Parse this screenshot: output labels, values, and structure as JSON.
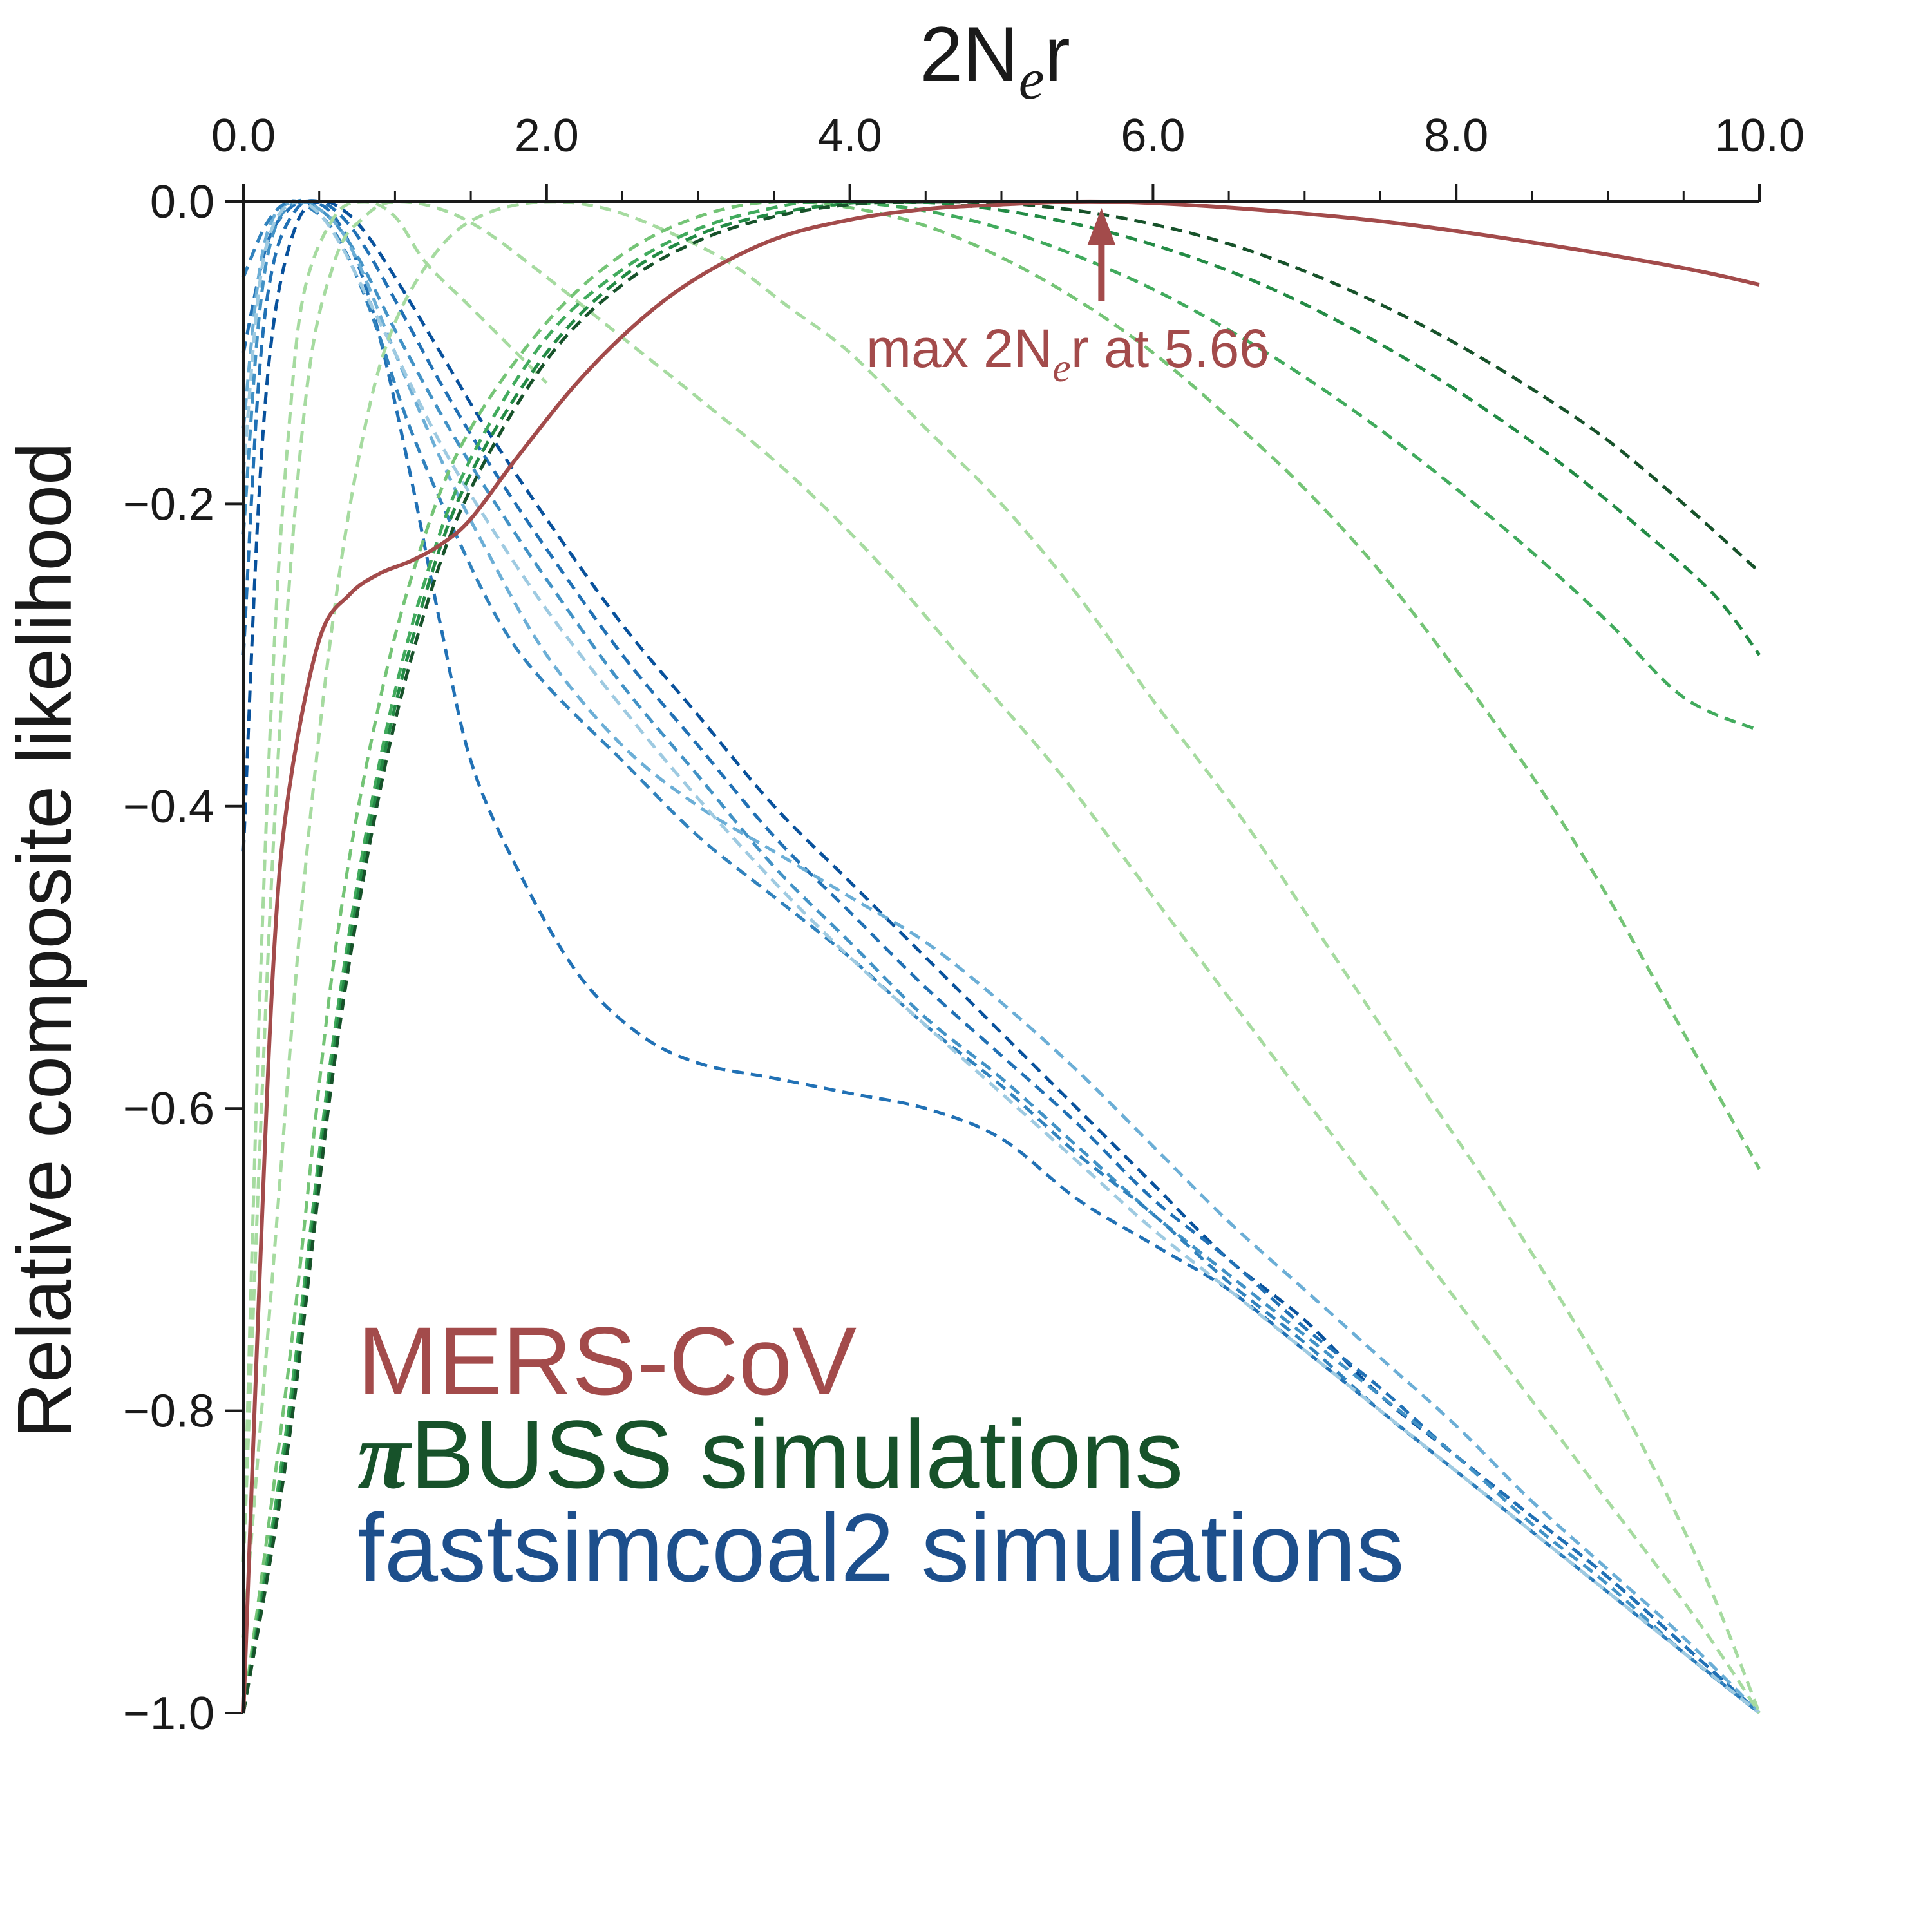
{
  "chart_data": {
    "type": "line",
    "xlabel_main": "2N",
    "xlabel_sub": "e",
    "xlabel_tail": "r",
    "ylabel": "Relative composite likelihood",
    "xlim": [
      0,
      10
    ],
    "ylim": [
      -1.0,
      0.0
    ],
    "x_ticks": [
      0.0,
      2.0,
      4.0,
      6.0,
      8.0,
      10.0
    ],
    "x_tick_labels": [
      "0.0",
      "2.0",
      "4.0",
      "6.0",
      "8.0",
      "10.0"
    ],
    "y_ticks": [
      0.0,
      -0.2,
      -0.4,
      -0.6,
      -0.8,
      -1.0
    ],
    "y_tick_labels": [
      "0.0",
      "−0.2",
      "−0.4",
      "−0.6",
      "−0.8",
      "−1.0"
    ],
    "grid": false,
    "legend_position": "lower-left",
    "legend": [
      {
        "text": "MERS-CoV",
        "color": "#a34b4b"
      },
      {
        "pi": "π",
        "text": "BUSS simulations",
        "color": "#17522a"
      },
      {
        "text": "fastsimcoal2 simulations",
        "color": "#1d4f8c"
      }
    ],
    "annotation": {
      "text_main": "max 2N",
      "text_sub": "e",
      "text_tail": "r at 5.66",
      "x": 5.66,
      "y": 0.0,
      "color": "#a34b4b"
    },
    "mers": {
      "name": "MERS-CoV",
      "color": "#a34b4b",
      "x": [
        0.0,
        0.1,
        0.2,
        0.3,
        0.5,
        0.7,
        0.9,
        1.1,
        1.3,
        1.5,
        1.8,
        2.2,
        2.6,
        3.0,
        3.5,
        4.0,
        4.5,
        5.0,
        5.66,
        6.5,
        7.5,
        8.5,
        9.5,
        10.0
      ],
      "y": [
        -1.0,
        -0.73,
        -0.5,
        -0.39,
        -0.29,
        -0.26,
        -0.246,
        -0.238,
        -0.227,
        -0.21,
        -0.17,
        -0.12,
        -0.08,
        -0.05,
        -0.025,
        -0.012,
        -0.005,
        -0.002,
        0.0,
        -0.004,
        -0.013,
        -0.027,
        -0.044,
        -0.055
      ]
    },
    "green_series": [
      {
        "color": "#a6dba0",
        "x": [
          0.0,
          0.1,
          0.2,
          0.3,
          0.4,
          0.6,
          0.8,
          1.0,
          1.2,
          1.5,
          2.0
        ],
        "y": [
          -0.9,
          -0.55,
          -0.3,
          -0.15,
          -0.06,
          -0.01,
          0.0,
          -0.01,
          -0.04,
          -0.07,
          -0.12
        ]
      },
      {
        "color": "#a6dba0",
        "x": [
          0.0,
          0.2,
          0.4,
          0.6,
          0.8,
          1.0,
          1.3,
          1.6,
          2.0,
          2.5,
          3.0,
          3.6,
          4.2,
          4.8,
          5.4,
          6.0,
          6.6,
          7.2,
          7.8,
          8.4,
          9.0,
          9.6,
          10.0
        ],
        "y": [
          -0.9,
          -0.42,
          -0.14,
          -0.04,
          -0.01,
          0.0,
          -0.005,
          -0.02,
          -0.05,
          -0.09,
          -0.13,
          -0.18,
          -0.24,
          -0.31,
          -0.38,
          -0.46,
          -0.54,
          -0.62,
          -0.7,
          -0.78,
          -0.86,
          -0.94,
          -1.0
        ]
      },
      {
        "color": "#a6dba0",
        "x": [
          0.0,
          0.2,
          0.4,
          0.6,
          0.8,
          1.0,
          1.3,
          1.6,
          2.0,
          2.4,
          2.8,
          3.2,
          3.6,
          4.0,
          4.5,
          5.0,
          5.5,
          6.0,
          6.6,
          7.2,
          7.8,
          8.4,
          9.0,
          9.6,
          10.0
        ],
        "y": [
          -0.95,
          -0.7,
          -0.45,
          -0.27,
          -0.15,
          -0.08,
          -0.03,
          -0.008,
          0.0,
          -0.005,
          -0.02,
          -0.04,
          -0.07,
          -0.1,
          -0.15,
          -0.2,
          -0.26,
          -0.33,
          -0.41,
          -0.5,
          -0.59,
          -0.68,
          -0.78,
          -0.9,
          -1.0
        ]
      },
      {
        "color": "#74c476",
        "x": [
          0.0,
          0.3,
          0.6,
          0.9,
          1.2,
          1.5,
          2.0,
          2.5,
          3.0,
          3.5,
          4.0,
          4.5,
          5.0,
          5.5,
          6.0,
          6.5,
          7.0,
          7.5,
          8.0,
          8.5,
          9.0,
          9.5,
          10.0
        ],
        "y": [
          -1.0,
          -0.77,
          -0.5,
          -0.33,
          -0.22,
          -0.15,
          -0.08,
          -0.035,
          -0.01,
          0.0,
          -0.004,
          -0.016,
          -0.037,
          -0.065,
          -0.1,
          -0.143,
          -0.19,
          -0.245,
          -0.31,
          -0.38,
          -0.46,
          -0.55,
          -0.64
        ]
      },
      {
        "color": "#41ab5d",
        "x": [
          0.0,
          0.3,
          0.6,
          0.9,
          1.2,
          1.5,
          2.0,
          2.5,
          3.0,
          3.5,
          3.8,
          4.2,
          4.6,
          5.0,
          5.5,
          6.0,
          6.5,
          7.0,
          7.5,
          8.0,
          8.5,
          9.0,
          9.5,
          10.0
        ],
        "y": [
          -1.0,
          -0.8,
          -0.55,
          -0.37,
          -0.25,
          -0.17,
          -0.09,
          -0.045,
          -0.018,
          -0.004,
          0.0,
          -0.002,
          -0.008,
          -0.018,
          -0.036,
          -0.058,
          -0.085,
          -0.116,
          -0.151,
          -0.19,
          -0.232,
          -0.278,
          -0.328,
          -0.35
        ]
      },
      {
        "color": "#238b45",
        "x": [
          0.0,
          0.3,
          0.6,
          0.9,
          1.2,
          1.5,
          2.0,
          2.5,
          3.0,
          3.5,
          4.0,
          4.3,
          4.7,
          5.2,
          5.7,
          6.2,
          6.7,
          7.2,
          7.7,
          8.2,
          8.7,
          9.2,
          9.7,
          10.0
        ],
        "y": [
          -1.0,
          -0.81,
          -0.56,
          -0.38,
          -0.26,
          -0.18,
          -0.1,
          -0.05,
          -0.022,
          -0.008,
          -0.001,
          0.0,
          -0.002,
          -0.009,
          -0.02,
          -0.035,
          -0.054,
          -0.078,
          -0.106,
          -0.138,
          -0.174,
          -0.215,
          -0.26,
          -0.3
        ]
      },
      {
        "color": "#17522a",
        "x": [
          0.0,
          0.3,
          0.6,
          0.9,
          1.2,
          1.5,
          2.0,
          2.5,
          3.0,
          3.5,
          4.0,
          4.5,
          5.0,
          5.5,
          6.0,
          6.5,
          7.0,
          7.5,
          8.0,
          8.5,
          9.0,
          9.5,
          10.0
        ],
        "y": [
          -1.0,
          -0.82,
          -0.57,
          -0.39,
          -0.27,
          -0.19,
          -0.105,
          -0.055,
          -0.026,
          -0.01,
          -0.002,
          0.0,
          -0.001,
          -0.006,
          -0.015,
          -0.028,
          -0.046,
          -0.068,
          -0.094,
          -0.124,
          -0.158,
          -0.2,
          -0.245
        ]
      }
    ],
    "blue_series": [
      {
        "color": "#08519c",
        "x": [
          0.0,
          0.1,
          0.2,
          0.35,
          0.5,
          0.65,
          0.8,
          1.0,
          1.3,
          1.6,
          2.0,
          2.5,
          3.0,
          3.5,
          4.0,
          4.5,
          5.0,
          5.5,
          6.0,
          6.5,
          7.0,
          7.5,
          8.0,
          8.5,
          9.0,
          9.5,
          10.0
        ],
        "y": [
          -0.43,
          -0.2,
          -0.08,
          -0.015,
          0.0,
          -0.005,
          -0.02,
          -0.05,
          -0.1,
          -0.15,
          -0.21,
          -0.28,
          -0.34,
          -0.4,
          -0.45,
          -0.5,
          -0.55,
          -0.6,
          -0.65,
          -0.7,
          -0.74,
          -0.79,
          -0.83,
          -0.87,
          -0.91,
          -0.955,
          -1.0
        ]
      },
      {
        "color": "#2171b5",
        "x": [
          0.0,
          0.1,
          0.2,
          0.35,
          0.5,
          0.65,
          0.8,
          1.0,
          1.3,
          1.6,
          2.0,
          2.5,
          3.0,
          3.5,
          4.0,
          4.5,
          5.0,
          5.5,
          6.0,
          6.5,
          7.0,
          7.5,
          8.0,
          8.5,
          9.0,
          9.5,
          10.0
        ],
        "y": [
          -0.3,
          -0.12,
          -0.04,
          -0.005,
          0.0,
          -0.01,
          -0.03,
          -0.065,
          -0.12,
          -0.17,
          -0.23,
          -0.3,
          -0.36,
          -0.42,
          -0.47,
          -0.52,
          -0.565,
          -0.61,
          -0.66,
          -0.7,
          -0.745,
          -0.785,
          -0.83,
          -0.87,
          -0.91,
          -0.955,
          -1.0
        ]
      },
      {
        "color": "#2171b5",
        "x": [
          0.0,
          0.15,
          0.3,
          0.45,
          0.6,
          0.75,
          0.9,
          1.1,
          1.3,
          1.5,
          1.8,
          2.2,
          2.6,
          3.0,
          3.5,
          4.0,
          4.5,
          5.0,
          5.5,
          6.0,
          6.5,
          7.0,
          7.5,
          8.0,
          8.5,
          9.0,
          9.5,
          10.0
        ],
        "y": [
          -0.1,
          -0.03,
          -0.005,
          0.0,
          -0.01,
          -0.04,
          -0.09,
          -0.18,
          -0.28,
          -0.37,
          -0.44,
          -0.51,
          -0.55,
          -0.57,
          -0.58,
          -0.59,
          -0.6,
          -0.62,
          -0.66,
          -0.69,
          -0.72,
          -0.76,
          -0.8,
          -0.84,
          -0.88,
          -0.92,
          -0.96,
          -1.0
        ]
      },
      {
        "color": "#4292c6",
        "x": [
          0.0,
          0.1,
          0.2,
          0.35,
          0.5,
          0.65,
          0.8,
          1.0,
          1.3,
          1.6,
          2.0,
          2.5,
          3.0,
          3.5,
          4.0,
          4.5,
          5.0,
          5.5,
          6.0,
          6.5,
          7.0,
          7.5,
          8.0,
          8.5,
          9.0,
          9.5,
          10.0
        ],
        "y": [
          -0.22,
          -0.08,
          -0.02,
          0.0,
          -0.005,
          -0.02,
          -0.045,
          -0.085,
          -0.14,
          -0.19,
          -0.25,
          -0.32,
          -0.38,
          -0.44,
          -0.49,
          -0.54,
          -0.58,
          -0.625,
          -0.67,
          -0.71,
          -0.75,
          -0.79,
          -0.83,
          -0.875,
          -0.915,
          -0.96,
          -1.0
        ]
      },
      {
        "color": "#6baed6",
        "x": [
          0.0,
          0.1,
          0.2,
          0.35,
          0.5,
          0.65,
          0.8,
          1.0,
          1.3,
          1.6,
          2.0,
          2.5,
          3.0,
          3.5,
          4.0,
          4.5,
          5.0,
          5.5,
          6.0,
          6.5,
          7.0,
          7.5,
          8.0,
          8.5,
          9.0,
          9.5,
          10.0
        ],
        "y": [
          -0.15,
          -0.05,
          -0.01,
          0.0,
          -0.005,
          -0.02,
          -0.05,
          -0.1,
          -0.17,
          -0.23,
          -0.3,
          -0.36,
          -0.4,
          -0.43,
          -0.46,
          -0.49,
          -0.53,
          -0.575,
          -0.625,
          -0.675,
          -0.72,
          -0.765,
          -0.81,
          -0.86,
          -0.905,
          -0.95,
          -1.0
        ]
      },
      {
        "color": "#3182bd",
        "x": [
          0.0,
          0.15,
          0.3,
          0.45,
          0.6,
          0.75,
          0.9,
          1.1,
          1.4,
          1.7,
          2.0,
          2.5,
          3.0,
          3.5,
          4.0,
          4.5,
          5.0,
          5.5,
          6.0,
          6.5,
          7.0,
          7.5,
          8.0,
          8.5,
          9.0,
          9.5,
          10.0
        ],
        "y": [
          -0.05,
          -0.015,
          0.0,
          -0.005,
          -0.02,
          -0.05,
          -0.09,
          -0.15,
          -0.22,
          -0.28,
          -0.32,
          -0.37,
          -0.42,
          -0.46,
          -0.5,
          -0.545,
          -0.585,
          -0.63,
          -0.67,
          -0.715,
          -0.755,
          -0.8,
          -0.84,
          -0.88,
          -0.92,
          -0.96,
          -1.0
        ]
      },
      {
        "color": "#9ecae1",
        "x": [
          0.0,
          0.1,
          0.2,
          0.35,
          0.5,
          0.65,
          0.8,
          1.0,
          1.3,
          1.6,
          2.0,
          2.5,
          3.0,
          3.5,
          4.0,
          4.5,
          5.0,
          5.5,
          6.0,
          6.5,
          7.0,
          7.5,
          8.0,
          8.5,
          9.0,
          9.5,
          10.0
        ],
        "y": [
          -0.18,
          -0.06,
          -0.015,
          0.0,
          -0.008,
          -0.03,
          -0.06,
          -0.1,
          -0.16,
          -0.21,
          -0.27,
          -0.335,
          -0.395,
          -0.45,
          -0.5,
          -0.545,
          -0.59,
          -0.635,
          -0.68,
          -0.72,
          -0.76,
          -0.8,
          -0.84,
          -0.88,
          -0.92,
          -0.96,
          -1.0
        ]
      }
    ]
  }
}
